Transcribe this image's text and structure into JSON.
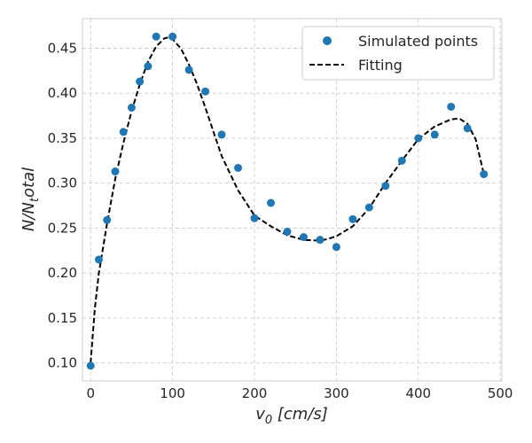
{
  "chart_data": {
    "type": "scatter",
    "xlabel_base": "v",
    "xlabel_sub": "0",
    "xlabel_unit": " [cm/s]",
    "ylabel_base": "N/N",
    "ylabel_sub": "t",
    "ylabel_tail": "otal",
    "xlim": [
      -10,
      502
    ],
    "ylim": [
      0.08,
      0.483
    ],
    "xticks": [
      0,
      100,
      200,
      300,
      400,
      500
    ],
    "yticks": [
      0.1,
      0.15,
      0.2,
      0.25,
      0.3,
      0.35,
      0.4,
      0.45
    ],
    "grid": true,
    "legend_position": "top-right",
    "series": [
      {
        "name": "Simulated points",
        "kind": "scatter",
        "color": "#1f77b4",
        "x": [
          0,
          10,
          20,
          30,
          40,
          50,
          60,
          70,
          80,
          100,
          120,
          140,
          160,
          180,
          200,
          220,
          240,
          260,
          280,
          300,
          320,
          340,
          360,
          380,
          400,
          420,
          440,
          460,
          480
        ],
        "y": [
          0.097,
          0.215,
          0.259,
          0.313,
          0.357,
          0.384,
          0.413,
          0.43,
          0.463,
          0.463,
          0.426,
          0.402,
          0.354,
          0.317,
          0.261,
          0.278,
          0.246,
          0.24,
          0.237,
          0.229,
          0.26,
          0.273,
          0.297,
          0.325,
          0.35,
          0.354,
          0.385,
          0.361,
          0.31
        ]
      },
      {
        "name": "Fitting",
        "kind": "line",
        "dash": true,
        "color": "#000000",
        "x": [
          0,
          5,
          10,
          20,
          30,
          40,
          50,
          60,
          70,
          80,
          90,
          95,
          100,
          110,
          120,
          130,
          140,
          150,
          160,
          180,
          200,
          220,
          240,
          260,
          280,
          290,
          300,
          320,
          340,
          360,
          380,
          400,
          420,
          440,
          450,
          460,
          470,
          480
        ],
        "y": [
          0.1,
          0.16,
          0.2,
          0.255,
          0.305,
          0.345,
          0.38,
          0.41,
          0.435,
          0.452,
          0.461,
          0.462,
          0.46,
          0.45,
          0.432,
          0.41,
          0.384,
          0.357,
          0.33,
          0.292,
          0.264,
          0.252,
          0.242,
          0.237,
          0.236,
          0.238,
          0.241,
          0.252,
          0.272,
          0.3,
          0.325,
          0.349,
          0.363,
          0.371,
          0.372,
          0.366,
          0.349,
          0.31
        ]
      }
    ]
  }
}
